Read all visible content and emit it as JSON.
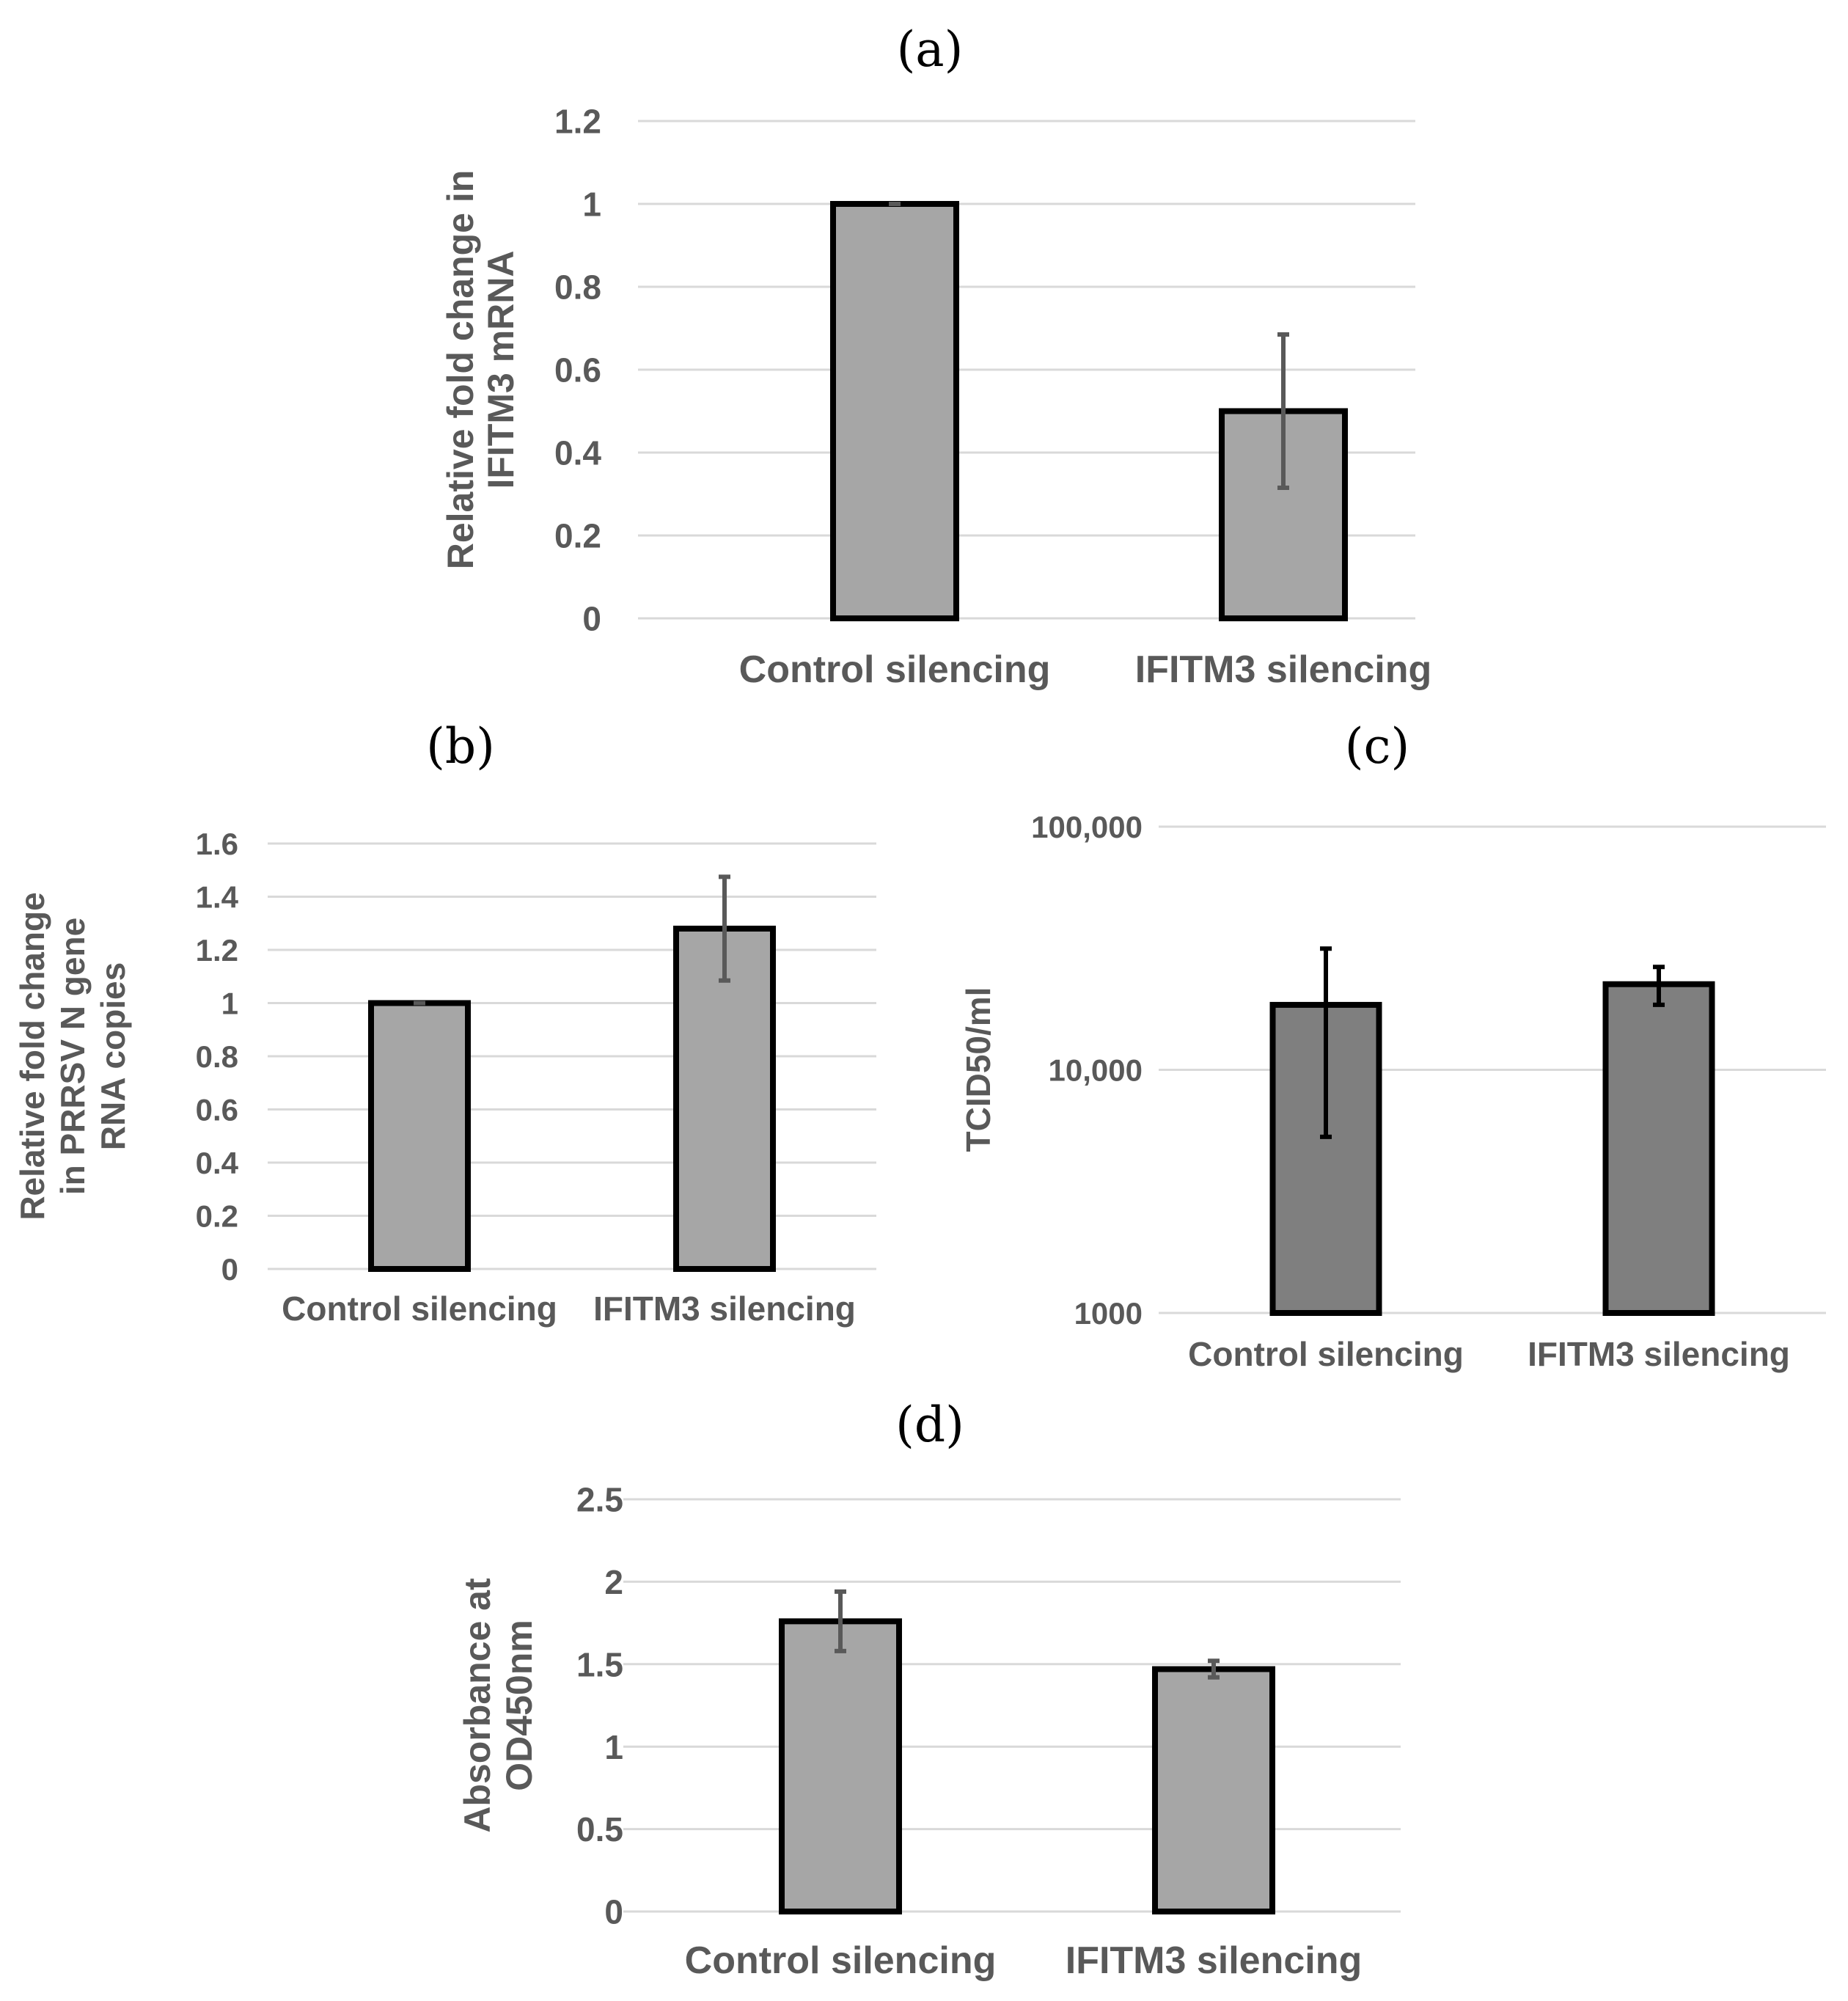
{
  "figure": {
    "colors": {
      "bar_light": "#a6a6a6",
      "bar_dark": "#7f7f7f",
      "bar_outline": "#000000",
      "grid": "#d9d9d9",
      "text": "#595959"
    }
  },
  "chart_data": [
    {
      "id": "a",
      "panel_label": "(a)",
      "type": "bar",
      "categories": [
        "Control silencing",
        "IFITM3 silencing"
      ],
      "values": [
        1.0,
        0.5
      ],
      "error": [
        [
          1.0,
          1.0
        ],
        [
          0.315,
          0.685
        ]
      ],
      "ylabel_lines": [
        "Relative fold change in",
        "IFITM3 mRNA"
      ],
      "ylim": [
        0,
        1.2
      ],
      "yticks": [
        0,
        0.2,
        0.4,
        0.6,
        0.8,
        1,
        1.2
      ],
      "ytick_labels": [
        "0",
        "0.2",
        "0.4",
        "0.6",
        "0.8",
        "1",
        "1.2"
      ],
      "scale": "linear",
      "grid": true
    },
    {
      "id": "b",
      "panel_label": "(b)",
      "type": "bar",
      "categories": [
        "Control silencing",
        "IFITM3 silencing"
      ],
      "values": [
        1.0,
        1.28
      ],
      "error": [
        [
          1.0,
          1.0
        ],
        [
          1.085,
          1.475
        ]
      ],
      "ylabel_lines": [
        "Relative fold change",
        "in PRRSV N gene",
        "RNA copies"
      ],
      "ylim": [
        0,
        1.6
      ],
      "yticks": [
        0,
        0.2,
        0.4,
        0.6,
        0.8,
        1,
        1.2,
        1.4,
        1.6
      ],
      "ytick_labels": [
        "0",
        "0.2",
        "0.4",
        "0.6",
        "0.8",
        "1",
        "1.2",
        "1.4",
        "1.6"
      ],
      "scale": "linear",
      "grid": true
    },
    {
      "id": "c",
      "panel_label": "(c)",
      "type": "bar",
      "categories": [
        "Control silencing",
        "IFITM3 silencing"
      ],
      "values": [
        18500,
        22500
      ],
      "error": [
        [
          5300,
          31500
        ],
        [
          18500,
          26500
        ]
      ],
      "ylabel_lines": [
        "TCID50/ml"
      ],
      "ylim": [
        1000,
        100000
      ],
      "yticks": [
        1000,
        10000,
        100000
      ],
      "ytick_labels": [
        "1000",
        "10,000",
        "100,000"
      ],
      "scale": "log",
      "grid": true
    },
    {
      "id": "d",
      "panel_label": "(d)",
      "type": "bar",
      "categories": [
        "Control silencing",
        "IFITM3 silencing"
      ],
      "values": [
        1.76,
        1.47
      ],
      "error": [
        [
          1.58,
          1.94
        ],
        [
          1.42,
          1.52
        ]
      ],
      "ylabel_lines": [
        "Absorbance at",
        "OD450nm"
      ],
      "ylim": [
        0,
        2.5
      ],
      "yticks": [
        0,
        0.5,
        1,
        1.5,
        2,
        2.5
      ],
      "ytick_labels": [
        "0",
        "0.5",
        "1",
        "1.5",
        "2",
        "2.5"
      ],
      "scale": "linear",
      "grid": true
    }
  ]
}
